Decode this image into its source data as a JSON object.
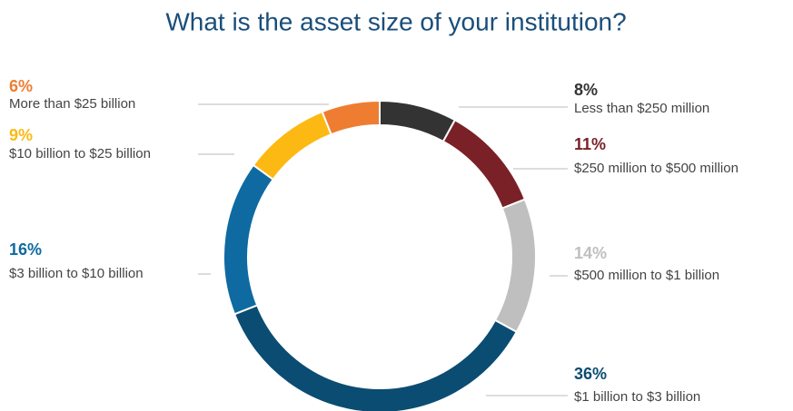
{
  "chart_data": {
    "type": "donut",
    "title": "What is the asset size of your institution?",
    "categories": [
      "Less than $250 million",
      "$250 million to $500 million",
      "$500 million to $1 billion",
      "$1 billion to $3 billion",
      "$3 billion to $10 billion",
      "$10 billion to $25 billion",
      "More than $25 billion"
    ],
    "values": [
      8,
      11,
      14,
      36,
      16,
      9,
      6
    ],
    "value_labels": [
      "8%",
      "11%",
      "14%",
      "36%",
      "16%",
      "9%",
      "6%"
    ],
    "colors": [
      "#333333",
      "#7a2128",
      "#bfbfc0",
      "#0b4c72",
      "#0e6aa1",
      "#fdb913",
      "#ee7d31"
    ],
    "label_colors": [
      "#333333",
      "#7a2128",
      "#bfbfc0",
      "#0b4c72",
      "#0e6aa1",
      "#fdb913",
      "#ee7d31"
    ]
  }
}
